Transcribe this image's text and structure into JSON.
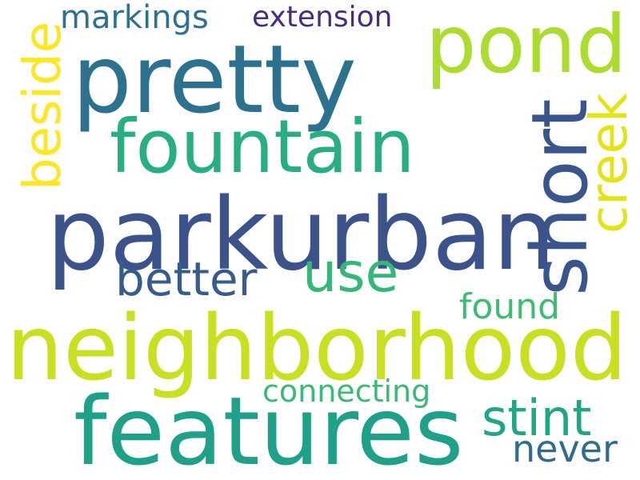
{
  "words": [
    {
      "key": "pretty",
      "text": "pretty",
      "color": "#2c728e"
    },
    {
      "key": "pond",
      "text": "pond",
      "color": "#addc30"
    },
    {
      "key": "markings",
      "text": "markings",
      "color": "#2c728e"
    },
    {
      "key": "extension",
      "text": "extension",
      "color": "#472d7b"
    },
    {
      "key": "beside",
      "text": "beside",
      "color": "#fde725"
    },
    {
      "key": "fountain",
      "text": "fountain",
      "color": "#28ae80"
    },
    {
      "key": "short",
      "text": "short",
      "color": "#39568c"
    },
    {
      "key": "creek",
      "text": "creek",
      "color": "#e2e418"
    },
    {
      "key": "parkurban",
      "text": "parkurban",
      "color": "#3b528b"
    },
    {
      "key": "better",
      "text": "better",
      "color": "#365c8d"
    },
    {
      "key": "use",
      "text": "use",
      "color": "#35b779"
    },
    {
      "key": "found",
      "text": "found",
      "color": "#3fbc73"
    },
    {
      "key": "neighborhood",
      "text": "neighborhood",
      "color": "#c8e020"
    },
    {
      "key": "connecting",
      "text": "connecting",
      "color": "#3aba76"
    },
    {
      "key": "features",
      "text": "features",
      "color": "#1fa088"
    },
    {
      "key": "stint",
      "text": "stint",
      "color": "#21a685"
    },
    {
      "key": "never",
      "text": "never",
      "color": "#2f6c8e"
    }
  ]
}
